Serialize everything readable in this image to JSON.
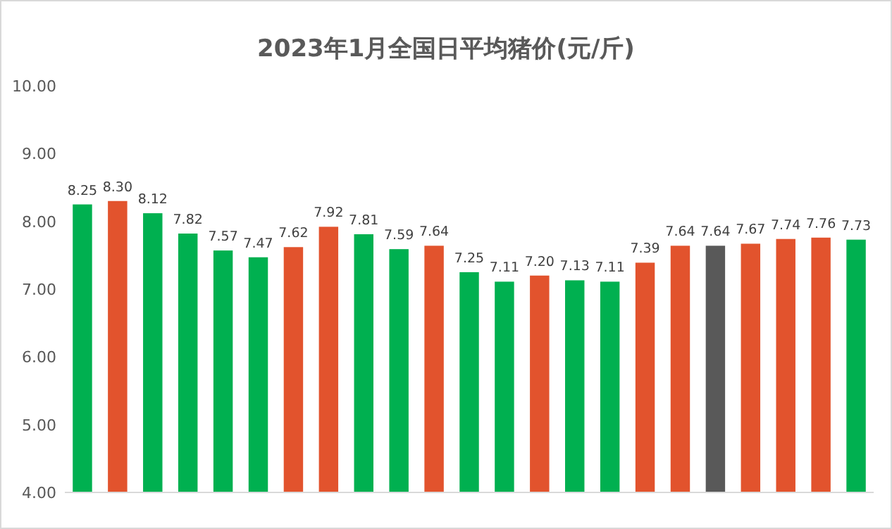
{
  "chart_data": {
    "type": "bar",
    "title": "2023年1月全国日平均猪价(元/斤)",
    "categories": [
      null,
      null,
      null,
      null,
      null,
      null,
      null,
      null,
      null,
      null,
      null,
      null,
      null,
      null,
      null,
      null,
      null,
      null,
      null,
      null,
      null,
      null,
      null
    ],
    "values": [
      8.25,
      8.3,
      8.12,
      7.82,
      7.57,
      7.47,
      7.62,
      7.92,
      7.81,
      7.59,
      7.64,
      7.25,
      7.11,
      7.2,
      7.13,
      7.11,
      7.39,
      7.64,
      7.64,
      7.67,
      7.74,
      7.76,
      7.73
    ],
    "colors": [
      "#00b050",
      "#e2532d",
      "#00b050",
      "#00b050",
      "#00b050",
      "#00b050",
      "#e2532d",
      "#e2532d",
      "#00b050",
      "#00b050",
      "#e2532d",
      "#00b050",
      "#00b050",
      "#e2532d",
      "#00b050",
      "#00b050",
      "#e2532d",
      "#e2532d",
      "#595959",
      "#e2532d",
      "#e2532d",
      "#e2532d",
      "#00b050"
    ],
    "value_labels": [
      "8.25",
      "8.30",
      "8.12",
      "7.82",
      "7.57",
      "7.47",
      "7.62",
      "7.92",
      "7.81",
      "7.59",
      "7.64",
      "7.25",
      "7.11",
      "7.20",
      "7.13",
      "7.11",
      "7.39",
      "7.64",
      "7.64",
      "7.67",
      "7.74",
      "7.76",
      "7.73"
    ],
    "ylim": [
      4,
      10
    ],
    "yticks": [
      {
        "value": 4,
        "label": "4.00"
      },
      {
        "value": 5,
        "label": "5.00"
      },
      {
        "value": 6,
        "label": "6.00"
      },
      {
        "value": 7,
        "label": "7.00"
      },
      {
        "value": 8,
        "label": "8.00"
      },
      {
        "value": 9,
        "label": "9.00"
      },
      {
        "value": 10,
        "label": "10.00"
      }
    ]
  }
}
